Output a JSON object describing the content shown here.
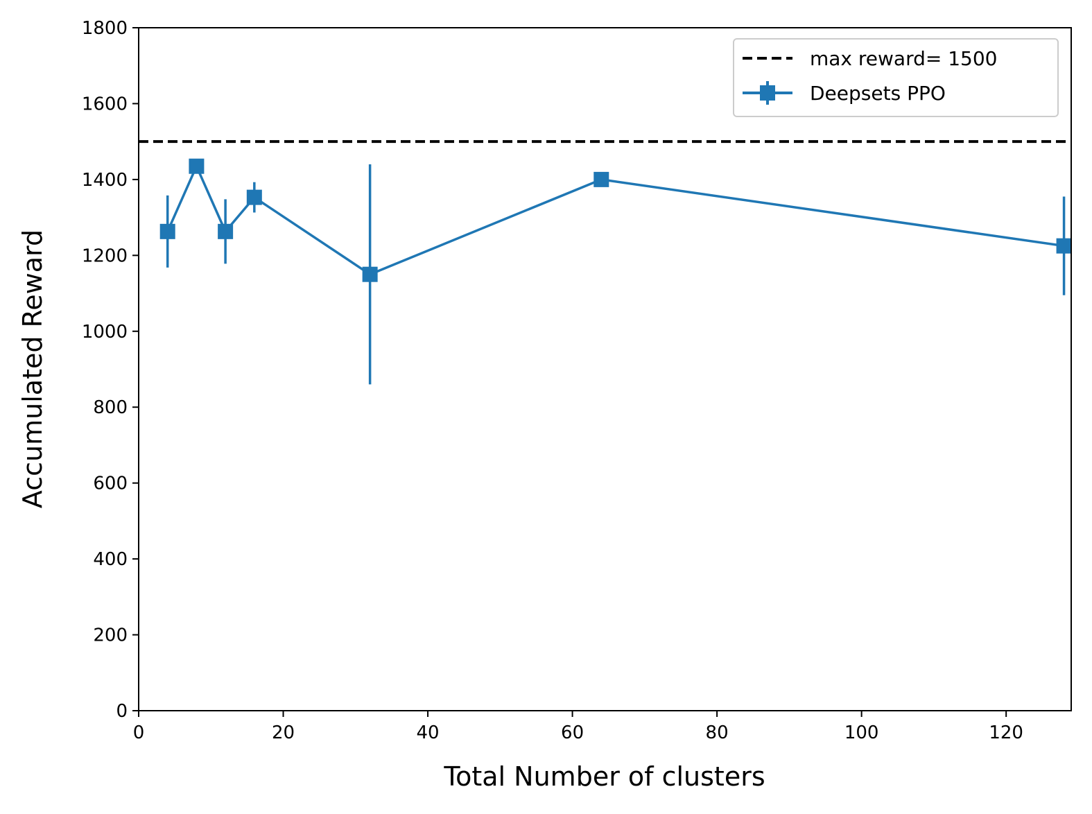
{
  "chart_data": {
    "type": "line",
    "title": "",
    "xlabel": "Total Number of clusters",
    "ylabel": "Accumulated Reward",
    "xlim": [
      0,
      129
    ],
    "ylim": [
      0,
      1800
    ],
    "xticks": [
      0,
      20,
      40,
      60,
      80,
      100,
      120
    ],
    "yticks": [
      0,
      200,
      400,
      600,
      800,
      1000,
      1200,
      1400,
      1600,
      1800
    ],
    "grid": false,
    "legend_position": "top-right",
    "reference_lines": [
      {
        "name": "max reward= 1500",
        "y": 1500,
        "style": "dashed",
        "color": "#000000"
      }
    ],
    "series": [
      {
        "name": "Deepsets PPO",
        "color": "#1f77b4",
        "marker": "square",
        "x": [
          4,
          8,
          12,
          16,
          32,
          64,
          128
        ],
        "y": [
          1263,
          1435,
          1263,
          1353,
          1150,
          1400,
          1225
        ],
        "yerr": [
          95,
          5,
          85,
          40,
          290,
          5,
          130
        ]
      }
    ]
  }
}
